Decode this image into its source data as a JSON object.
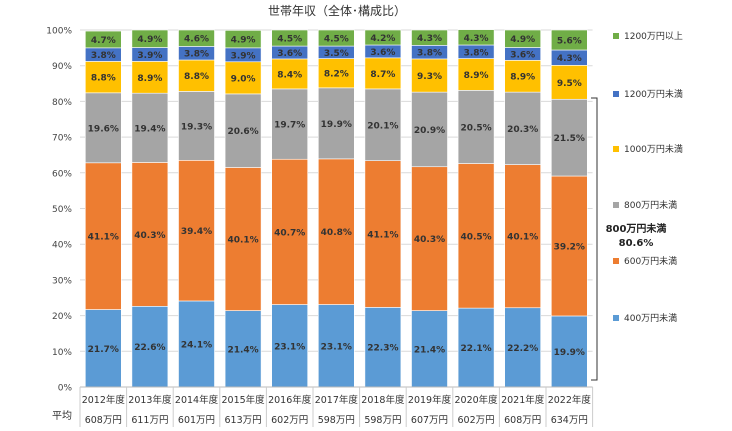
{
  "chart_data": {
    "type": "bar",
    "stacked": true,
    "title": "世帯年収（全体･構成比）",
    "categories": [
      "2012年度",
      "2013年度",
      "2014年度",
      "2015年度",
      "2016年度",
      "2017年度",
      "2018年度",
      "2019年度",
      "2020年度",
      "2021年度",
      "2022年度"
    ],
    "averages_label": "平均",
    "averages": [
      "608万円",
      "611万円",
      "601万円",
      "613万円",
      "602万円",
      "598万円",
      "598万円",
      "607万円",
      "602万円",
      "608万円",
      "634万円"
    ],
    "yticks": [
      "0%",
      "10%",
      "20%",
      "30%",
      "40%",
      "50%",
      "60%",
      "70%",
      "80%",
      "90%",
      "100%"
    ],
    "ylim": [
      0,
      100
    ],
    "grid": true,
    "legend_position": "right",
    "series": [
      {
        "name": "400万円未満",
        "color": "#5b9bd5",
        "values": [
          21.7,
          22.6,
          24.1,
          21.4,
          23.1,
          23.1,
          22.3,
          21.4,
          22.1,
          22.2,
          19.9
        ]
      },
      {
        "name": "600万円未満",
        "color": "#ed7d31",
        "values": [
          41.1,
          40.3,
          39.4,
          40.1,
          40.7,
          40.8,
          41.1,
          40.3,
          40.5,
          40.1,
          39.2
        ]
      },
      {
        "name": "800万円未満",
        "color": "#a5a5a5",
        "values": [
          19.6,
          19.4,
          19.3,
          20.6,
          19.7,
          19.9,
          20.1,
          20.9,
          20.5,
          20.3,
          21.5
        ]
      },
      {
        "name": "1000万円未満",
        "color": "#ffc000",
        "values": [
          8.8,
          8.9,
          8.8,
          9.0,
          8.4,
          8.2,
          8.7,
          9.3,
          8.9,
          8.9,
          9.5
        ]
      },
      {
        "name": "1200万円未満",
        "color": "#4472c4",
        "values": [
          3.8,
          3.9,
          3.8,
          3.9,
          3.6,
          3.5,
          3.6,
          3.8,
          3.8,
          3.6,
          4.3
        ]
      },
      {
        "name": "1200万円以上",
        "color": "#70ad47",
        "values": [
          4.7,
          4.9,
          4.6,
          4.9,
          4.5,
          4.5,
          4.2,
          4.3,
          4.3,
          4.9,
          5.6
        ]
      }
    ],
    "annotation": {
      "label": "800万円未満",
      "value": "80.6%"
    }
  }
}
